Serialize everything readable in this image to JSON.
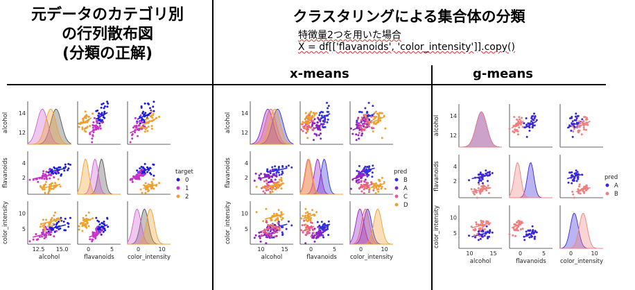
{
  "header": {
    "left_title_lines": [
      "元データのカテゴリ別",
      "の行列散布図",
      "(分類の正解)"
    ],
    "right_title": "クラスタリングによる集合体の分類",
    "subtitle_line1": "特徴量2つを用いた場合",
    "subtitle_line2": "X = df[['flavanoids', 'color_intensity']].copy()",
    "xmeans_label": "x-means",
    "gmeans_label": "g-means"
  },
  "chart_data": [
    {
      "type": "scatter",
      "title": "元データのカテゴリ別の行列散布図(分類の正解)",
      "variables": [
        "alcohol",
        "flavanoids",
        "color_intensity"
      ],
      "diag_ticks": {
        "alcohol": [
          12,
          14
        ],
        "flavanoids": [
          2,
          4
        ],
        "color_intensity": [
          5,
          10
        ]
      },
      "x_tick_labels": {
        "alcohol": [
          "12.5",
          "15.0"
        ],
        "flavanoids": [
          "0",
          "5"
        ],
        "color_intensity": [
          "0",
          "10"
        ]
      },
      "legend": {
        "title": "target",
        "placement": "right",
        "entries": [
          "0",
          "1",
          "2"
        ]
      },
      "series": [
        {
          "name": "0",
          "color": "#1c1cdc",
          "centroid": {
            "alcohol": 13.7,
            "flavanoids": 2.98,
            "color_intensity": 5.5
          }
        },
        {
          "name": "1",
          "color": "#c832c8",
          "centroid": {
            "alcohol": 12.3,
            "flavanoids": 2.08,
            "color_intensity": 3.1
          }
        },
        {
          "name": "2",
          "color": "#f0a030",
          "centroid": {
            "alcohol": 13.15,
            "flavanoids": 0.78,
            "color_intensity": 7.4
          }
        }
      ],
      "diag_kde_colors": [
        "#555555",
        "#d060d0",
        "#f0a030"
      ]
    },
    {
      "type": "scatter",
      "title": "x-means",
      "variables": [
        "alcohol",
        "flavanoids",
        "color_intensity"
      ],
      "diag_ticks": {
        "alcohol": [
          12,
          14
        ],
        "flavanoids": [
          2,
          4
        ],
        "color_intensity": [
          5,
          10
        ]
      },
      "x_tick_labels": {
        "alcohol": [
          "10",
          "15"
        ],
        "flavanoids": [
          "0",
          "5"
        ],
        "color_intensity": [
          "0",
          "10"
        ]
      },
      "legend": {
        "title": "pred",
        "placement": "right",
        "entries": [
          "B",
          "A",
          "C",
          "D"
        ]
      },
      "series": [
        {
          "name": "B",
          "color": "#3030e0",
          "centroid": {
            "alcohol": 13.6,
            "flavanoids": 3.0,
            "color_intensity": 5.7
          }
        },
        {
          "name": "A",
          "color": "#9020c8",
          "centroid": {
            "alcohol": 12.6,
            "flavanoids": 2.1,
            "color_intensity": 3.2
          }
        },
        {
          "name": "C",
          "color": "#e86088",
          "centroid": {
            "alcohol": 12.9,
            "flavanoids": 0.8,
            "color_intensity": 5.0
          }
        },
        {
          "name": "D",
          "color": "#f0a030",
          "centroid": {
            "alcohol": 13.3,
            "flavanoids": 0.9,
            "color_intensity": 9.0
          }
        }
      ]
    },
    {
      "type": "scatter",
      "title": "g-means",
      "variables": [
        "alcohol",
        "flavanoids",
        "color_intensity"
      ],
      "diag_ticks": {
        "alcohol": [
          12,
          14
        ],
        "flavanoids": [
          2,
          4
        ],
        "color_intensity": [
          5,
          10
        ]
      },
      "x_tick_labels": {
        "alcohol": [
          "10",
          "15"
        ],
        "flavanoids": [
          "0",
          "5"
        ],
        "color_intensity": [
          "0",
          "10"
        ]
      },
      "legend": {
        "title": "pred",
        "placement": "right",
        "entries": [
          "A",
          "B"
        ]
      },
      "series": [
        {
          "name": "A",
          "color": "#3a28d8",
          "centroid": {
            "alcohol": 13.1,
            "flavanoids": 2.6,
            "color_intensity": 4.6
          }
        },
        {
          "name": "B",
          "color": "#f08080",
          "centroid": {
            "alcohol": 13.1,
            "flavanoids": 0.8,
            "color_intensity": 7.5
          }
        }
      ]
    }
  ]
}
